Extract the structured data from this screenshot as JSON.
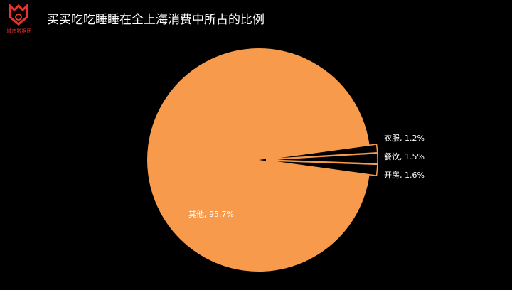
{
  "logo_text": "城市数据团",
  "chart_data": {
    "type": "pie",
    "title": "买买吃吃睡睡在全上海消费中所占的比例",
    "values": [
      1.2,
      1.5,
      1.6,
      95.7
    ],
    "value_labels": [
      "衣服, 1.2%",
      "餐饮, 1.5%",
      "开房, 1.6%",
      "其他, 95.7%"
    ],
    "colors": [
      "#000000",
      "#000000",
      "#000000",
      "#f79a4b"
    ],
    "edge_color": "#f79a4b"
  }
}
